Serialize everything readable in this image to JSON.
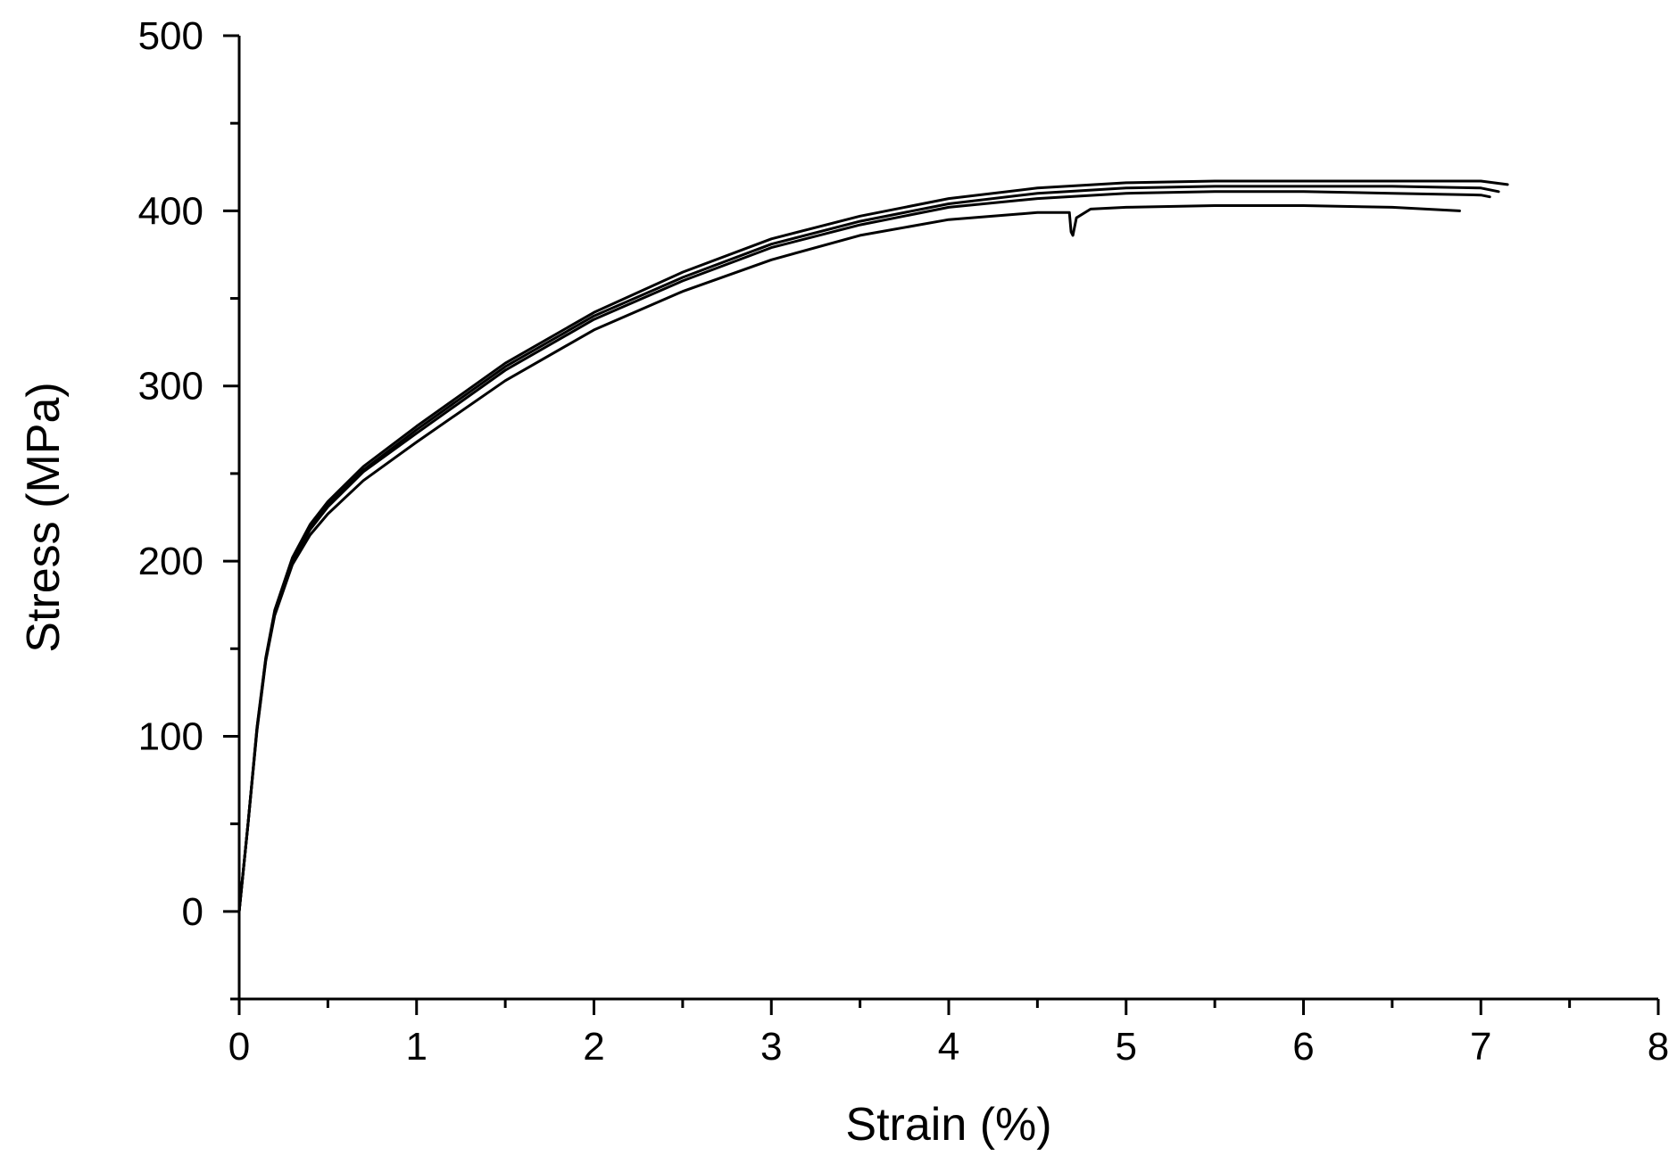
{
  "chart_data": {
    "type": "line",
    "title": "",
    "xlabel": "Strain (%)",
    "ylabel": "Stress (MPa)",
    "xlim": [
      0,
      8
    ],
    "ylim": [
      -50,
      500
    ],
    "x_ticks": [
      0,
      1,
      2,
      3,
      4,
      5,
      6,
      7,
      8
    ],
    "x_tick_labels": [
      "0",
      "1",
      "2",
      "3",
      "4",
      "5",
      "6",
      "7",
      "8"
    ],
    "y_ticks": [
      0,
      100,
      200,
      300,
      400,
      500
    ],
    "y_tick_labels": [
      "0",
      "100",
      "200",
      "300",
      "400",
      "500"
    ],
    "x_minor_step": 0.5,
    "y_minor_step": 50,
    "grid": false,
    "legend": "none",
    "line_color": "#000000",
    "series": [
      {
        "x": [
          0,
          0.05,
          0.1,
          0.15,
          0.2,
          0.3,
          0.4,
          0.5,
          0.7,
          1.0,
          1.5,
          2.0,
          2.5,
          3.0,
          3.5,
          4.0,
          4.5,
          5.0,
          5.5,
          6.0,
          6.5,
          7.0,
          7.15
        ],
        "y": [
          0,
          50,
          105,
          145,
          172,
          202,
          221,
          234,
          254,
          277,
          313,
          342,
          365,
          384,
          397,
          407,
          413,
          416,
          417,
          417,
          417,
          417,
          415
        ]
      },
      {
        "x": [
          0,
          0.05,
          0.1,
          0.15,
          0.2,
          0.3,
          0.4,
          0.5,
          0.7,
          1.0,
          1.5,
          2.0,
          2.5,
          3.0,
          3.5,
          4.0,
          4.5,
          5.0,
          5.5,
          6.0,
          6.5,
          7.0,
          7.1
        ],
        "y": [
          0,
          50,
          104,
          144,
          171,
          201,
          219,
          232,
          252,
          275,
          311,
          340,
          362,
          381,
          394,
          404,
          410,
          413,
          414,
          414,
          414,
          413,
          411
        ]
      },
      {
        "x": [
          0,
          0.05,
          0.1,
          0.15,
          0.2,
          0.3,
          0.4,
          0.5,
          0.7,
          1.0,
          1.5,
          2.0,
          2.5,
          3.0,
          3.5,
          4.0,
          4.5,
          5.0,
          5.5,
          6.0,
          6.5,
          7.0,
          7.05
        ],
        "y": [
          0,
          50,
          104,
          144,
          170,
          200,
          218,
          231,
          251,
          273,
          309,
          338,
          360,
          379,
          392,
          402,
          407,
          410,
          411,
          411,
          410,
          409,
          408
        ]
      },
      {
        "x": [
          0,
          0.05,
          0.1,
          0.15,
          0.2,
          0.3,
          0.4,
          0.5,
          0.7,
          1.0,
          1.5,
          2.0,
          2.5,
          3.0,
          3.5,
          4.0,
          4.5,
          4.68,
          4.69,
          4.7,
          4.72,
          4.8,
          5.0,
          5.5,
          6.0,
          6.5,
          6.88
        ],
        "y": [
          0,
          50,
          103,
          143,
          169,
          198,
          215,
          227,
          246,
          268,
          303,
          332,
          354,
          372,
          386,
          395,
          399,
          399,
          388,
          386,
          396,
          401,
          402,
          403,
          403,
          402,
          400
        ]
      }
    ]
  }
}
